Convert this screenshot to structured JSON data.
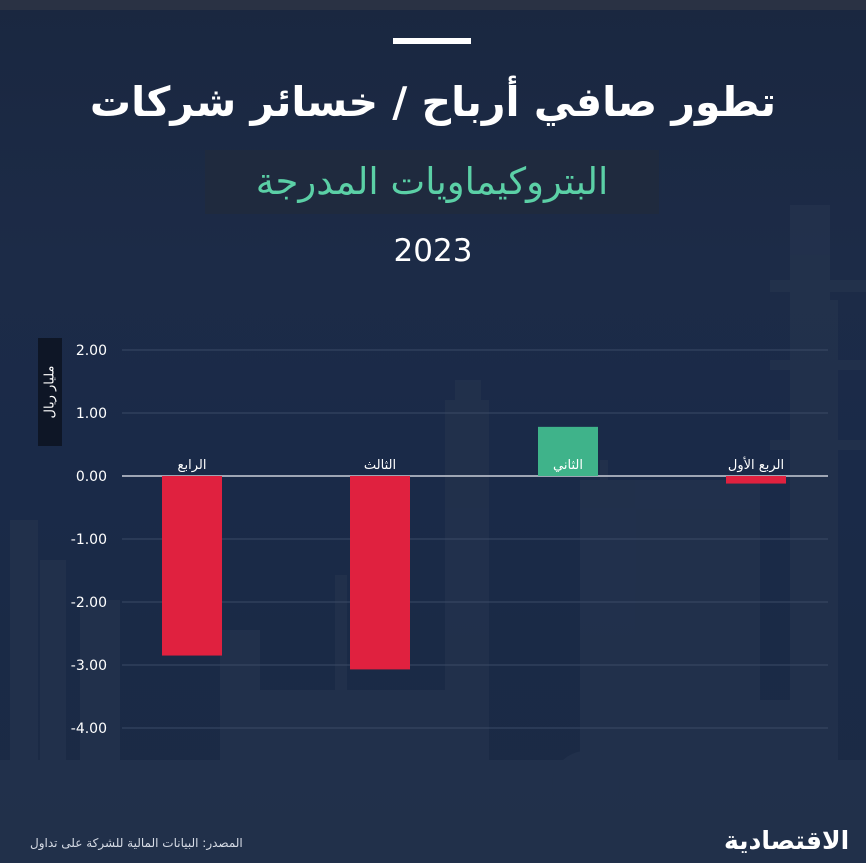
{
  "header": {
    "title": "تطور صافي أرباح / خسائر شركات",
    "subtitle": "البتروكيماويات المدرجة",
    "year": "2023"
  },
  "footer": {
    "source": "المصدر: البيانات المالية للشركة على تداول",
    "brand": "الاقتصادية"
  },
  "colors": {
    "negative": "#e0213f",
    "positive": "#3fb38a",
    "subtitle": "#5bd0a6",
    "background": "#1a2740"
  },
  "chart_data": {
    "type": "bar",
    "categories": [
      "الربع الأول",
      "الثاني",
      "الثالث",
      "الرابع"
    ],
    "values": [
      -0.12,
      0.78,
      -3.07,
      -2.85
    ],
    "title": "تطور صافي أرباح / خسائر شركات البتروكيماويات المدرجة",
    "ylabel": "مليار ريال",
    "xlabel": "",
    "ylim": [
      -4,
      2
    ],
    "yticks": [
      "2.00",
      "1.00",
      "0.00",
      "-1.00",
      "-2.00",
      "-3.00",
      "-4.00"
    ],
    "grid": true,
    "x_direction": "right-to-left"
  }
}
